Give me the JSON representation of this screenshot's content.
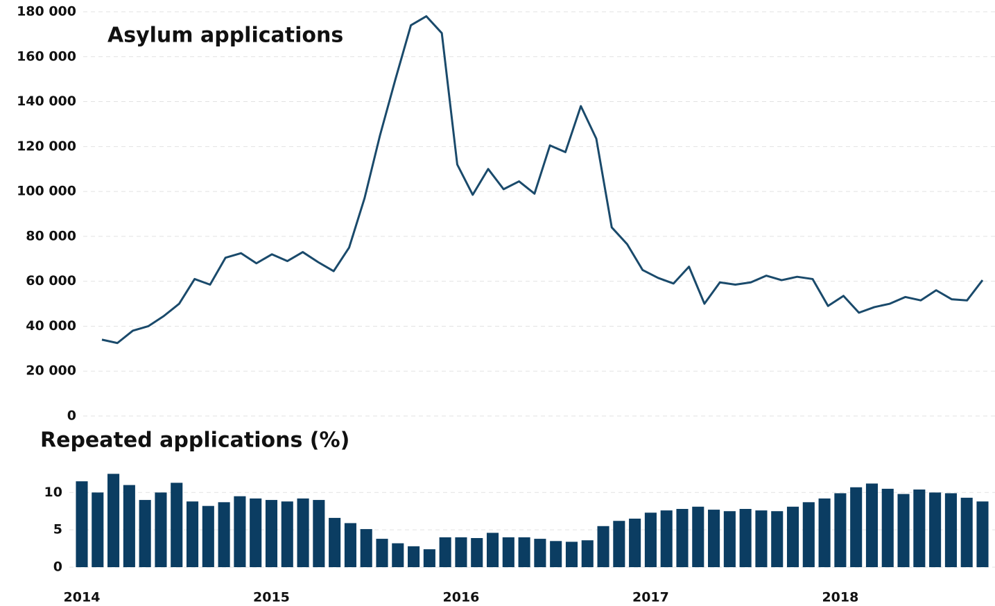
{
  "chart_data": [
    {
      "type": "line",
      "title": "Asylum applications",
      "color": "#1a4a6b",
      "grid": true,
      "ylim": [
        0,
        180000
      ],
      "yticks": [
        0,
        {
          "value": 20000,
          "label": "20 000"
        },
        {
          "value": 40000,
          "label": "40 000"
        },
        {
          "value": 60000,
          "label": "60 000"
        },
        {
          "value": 80000,
          "label": "80 000"
        },
        {
          "value": 100000,
          "label": "100 000"
        },
        {
          "value": 120000,
          "label": "120 000"
        },
        {
          "value": 140000,
          "label": "140 000"
        },
        {
          "value": 160000,
          "label": "160 000"
        },
        {
          "value": 180000,
          "label": "180 000"
        }
      ],
      "values": [
        34000,
        32500,
        38000,
        40000,
        44500,
        50000,
        61000,
        58500,
        70500,
        72500,
        68000,
        72000,
        69000,
        73000,
        68500,
        64500,
        75000,
        97000,
        125000,
        150000,
        174000,
        178000,
        170500,
        112000,
        98500,
        110000,
        101000,
        104500,
        99000,
        120500,
        117500,
        138000,
        123500,
        84000,
        76500,
        65000,
        61500,
        59000,
        66500,
        50000,
        59500,
        58500,
        59500,
        62500,
        60500,
        62000,
        61000,
        49000,
        53500,
        46000,
        48500,
        50000,
        53000,
        51500,
        56000,
        52000,
        51500,
        60500
      ]
    },
    {
      "type": "bar",
      "title": "Repeated applications (%)",
      "color": "#0b3d62",
      "grid": true,
      "ylim": [
        0,
        13
      ],
      "yticks": [
        0,
        5,
        10
      ],
      "categories": [
        "2014",
        null,
        null,
        null,
        null,
        null,
        null,
        null,
        null,
        null,
        null,
        null,
        "2015",
        null,
        null,
        null,
        null,
        null,
        null,
        null,
        null,
        null,
        null,
        null,
        "2016",
        null,
        null,
        null,
        null,
        null,
        null,
        null,
        null,
        null,
        null,
        null,
        "2017",
        null,
        null,
        null,
        null,
        null,
        null,
        null,
        null,
        null,
        null,
        null,
        "2018",
        null,
        null,
        null,
        null,
        null,
        null,
        null,
        null,
        null
      ],
      "values": [
        11.5,
        10,
        12.5,
        11,
        9,
        10,
        11.3,
        8.8,
        8.2,
        8.7,
        9.5,
        9.2,
        9,
        8.8,
        9.2,
        9,
        6.6,
        5.9,
        5.1,
        3.8,
        3.2,
        2.8,
        2.4,
        4,
        4,
        3.9,
        4.6,
        4,
        4,
        3.8,
        3.5,
        3.4,
        3.6,
        5.5,
        6.2,
        6.5,
        7.3,
        7.6,
        7.8,
        8.1,
        7.7,
        7.5,
        7.8,
        7.6,
        7.5,
        8.1,
        8.7,
        9.2,
        9.9,
        10.7,
        11.2,
        10.5,
        9.8,
        10.4,
        10,
        9.9,
        9.3,
        8.8
      ]
    }
  ]
}
